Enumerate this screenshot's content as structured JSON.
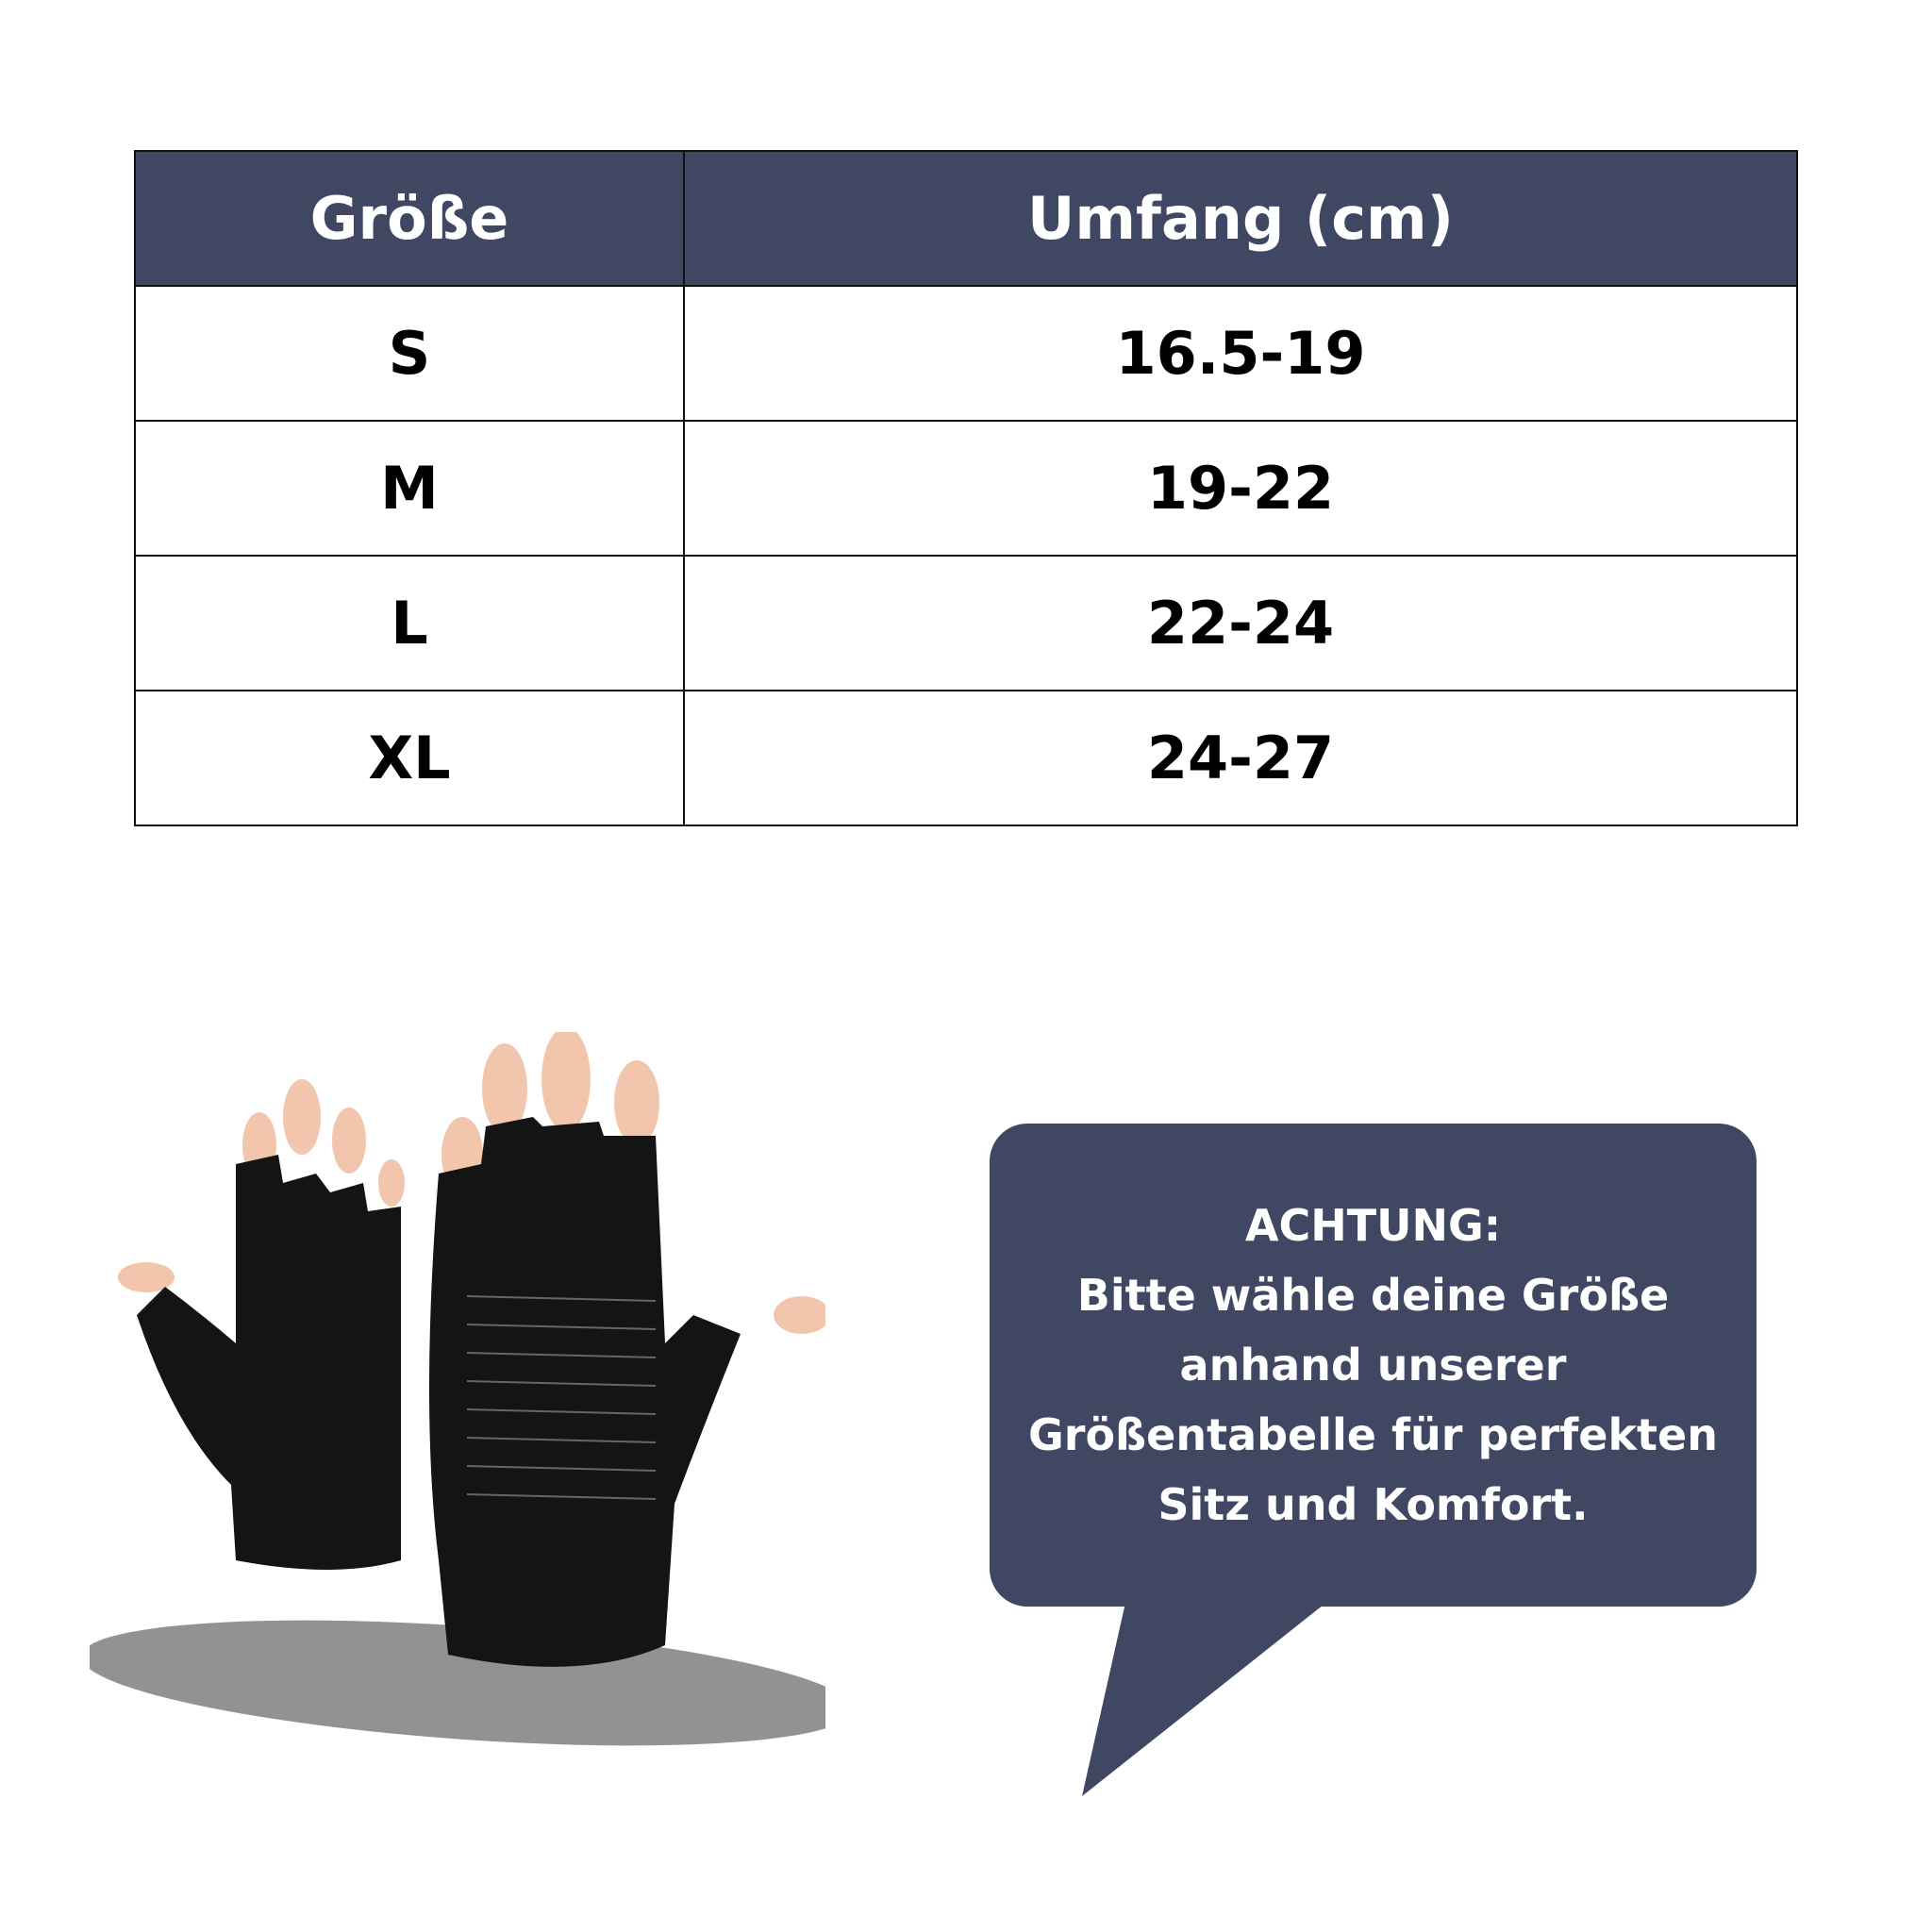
{
  "table": {
    "headers": [
      "Größe",
      "Umfang (cm)"
    ],
    "rows": [
      {
        "size": "S",
        "range": "16.5-19"
      },
      {
        "size": "M",
        "range": "19-22"
      },
      {
        "size": "L",
        "range": "22-24"
      },
      {
        "size": "XL",
        "range": "24-27"
      }
    ]
  },
  "notice": {
    "title": "ACHTUNG:",
    "lines": [
      "Bitte wähle deine Größe",
      "anhand unserer",
      "Größentabelle für perfekten",
      "Sitz und Komfort."
    ]
  },
  "colors": {
    "accent": "#404763"
  }
}
